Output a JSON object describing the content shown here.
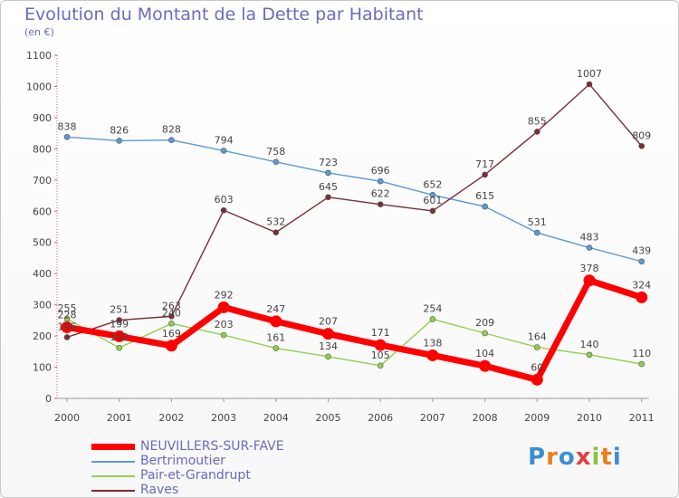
{
  "title": "Evolution du Montant de la Dette par Habitant",
  "unit": "(en €)",
  "logo": {
    "letters": [
      {
        "ch": "P",
        "color": "#3a8fd6"
      },
      {
        "ch": "r",
        "color": "#ef7d1a"
      },
      {
        "ch": "o",
        "color": "#3a8fd6"
      },
      {
        "ch": "x",
        "color": "#e4403a"
      },
      {
        "ch": "i",
        "color": "#8cc43c"
      },
      {
        "ch": "t",
        "color": "#ef7d1a"
      },
      {
        "ch": "i",
        "color": "#3a8fd6"
      }
    ]
  },
  "chart_data": {
    "type": "line",
    "x": [
      "2000",
      "2001",
      "2002",
      "2003",
      "2004",
      "2005",
      "2006",
      "2007",
      "2008",
      "2009",
      "2010",
      "2011"
    ],
    "ylim": [
      0,
      1100
    ],
    "yticks": [
      "0",
      "100",
      "200",
      "300",
      "400",
      "500",
      "600",
      "700",
      "800",
      "900",
      "1000",
      "1100"
    ],
    "grid": false,
    "legend_position": "bottom-left",
    "series": [
      {
        "name": "NEUVILLERS-SUR-FAVE",
        "color": "#ff0000",
        "highlight": true,
        "values": [
          228,
          199,
          169,
          292,
          247,
          207,
          171,
          138,
          104,
          60,
          378,
          324
        ],
        "labels": [
          "228",
          "199",
          "169",
          "292",
          "247",
          "207",
          "171",
          "138",
          "104",
          "60",
          "378",
          "324"
        ]
      },
      {
        "name": "Bertrimoutier",
        "color": "#5b9bd5",
        "highlight": false,
        "values": [
          838,
          826,
          828,
          794,
          758,
          723,
          696,
          652,
          615,
          531,
          483,
          439
        ],
        "labels": [
          "838",
          "826",
          "828",
          "794",
          "758",
          "723",
          "696",
          "652",
          "615",
          "531",
          "483",
          "439"
        ]
      },
      {
        "name": "Pair-et-Grandrupt",
        "color": "#92d050",
        "highlight": false,
        "values": [
          255,
          162,
          240,
          203,
          161,
          134,
          105,
          254,
          209,
          164,
          140,
          110
        ],
        "labels": [
          "255",
          "162",
          "240",
          "203",
          "161",
          "134",
          "105",
          "254",
          "209",
          "164",
          "140",
          "110"
        ]
      },
      {
        "name": "Raves",
        "color": "#7b2d35",
        "highlight": false,
        "values": [
          196,
          251,
          263,
          603,
          532,
          645,
          622,
          601,
          717,
          855,
          1007,
          809
        ],
        "labels": [
          "196",
          "251",
          "263",
          "603",
          "532",
          "645",
          "622",
          "601",
          "717",
          "855",
          "1007",
          "809"
        ]
      }
    ]
  }
}
